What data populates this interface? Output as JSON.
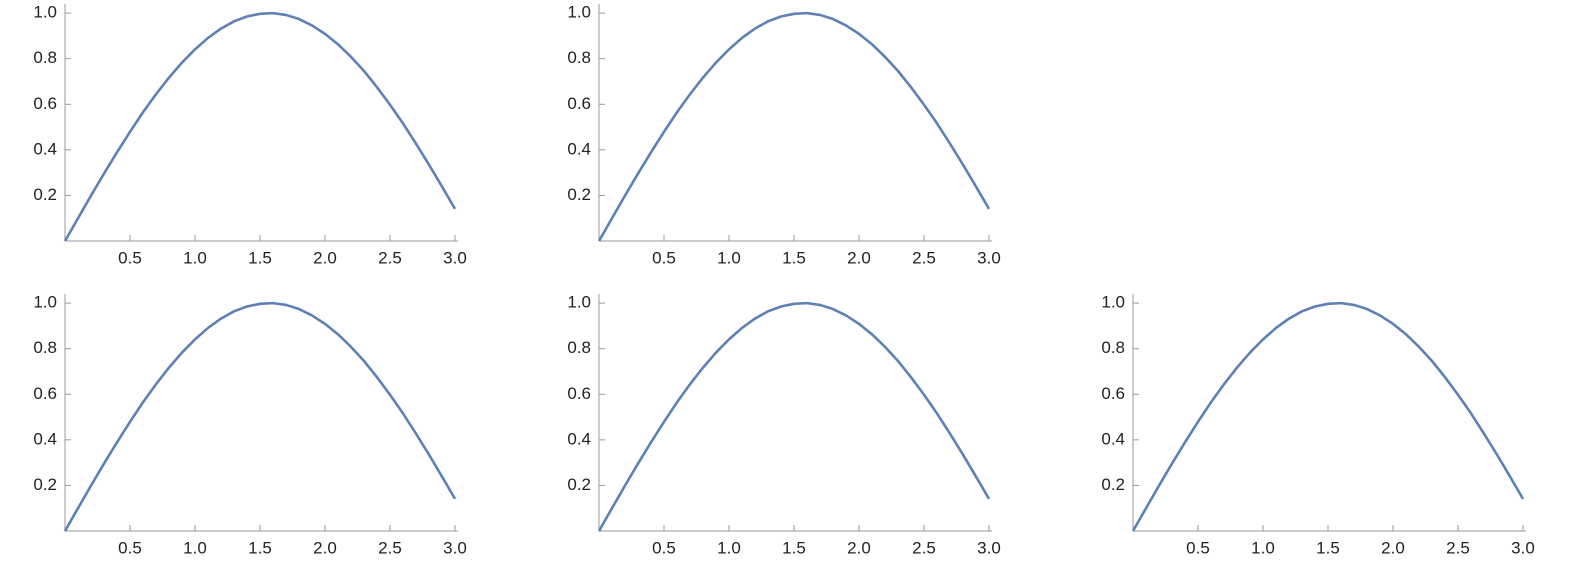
{
  "chart_data": [
    {
      "type": "line",
      "color": "#5e81b5",
      "x": [
        0,
        0.1,
        0.2,
        0.3,
        0.4,
        0.5,
        0.6,
        0.7,
        0.8,
        0.9,
        1.0,
        1.1,
        1.2,
        1.3,
        1.4,
        1.5,
        1.6,
        1.7,
        1.8,
        1.9,
        2.0,
        2.1,
        2.2,
        2.3,
        2.4,
        2.5,
        2.6,
        2.7,
        2.8,
        2.9,
        3.0
      ],
      "values": [
        0,
        0.1,
        0.199,
        0.296,
        0.389,
        0.479,
        0.565,
        0.644,
        0.717,
        0.783,
        0.841,
        0.891,
        0.932,
        0.964,
        0.985,
        0.997,
        1.0,
        0.992,
        0.974,
        0.946,
        0.909,
        0.863,
        0.808,
        0.746,
        0.675,
        0.598,
        0.516,
        0.427,
        0.335,
        0.239,
        0.141
      ],
      "xlim": [
        0,
        3
      ],
      "ylim": [
        0,
        1.04
      ],
      "xticks": [
        0.5,
        {
          "value": 1,
          "label": "1.0"
        },
        1.5,
        {
          "value": 2,
          "label": "2.0"
        },
        2.5,
        {
          "value": 3,
          "label": "3.0"
        }
      ],
      "yticks": [
        0.2,
        0.4,
        0.6,
        0.8,
        {
          "value": 1,
          "label": "1.0"
        }
      ]
    },
    {
      "type": "line",
      "color": "#5e81b5",
      "x": [
        0,
        0.1,
        0.2,
        0.3,
        0.4,
        0.5,
        0.6,
        0.7,
        0.8,
        0.9,
        1.0,
        1.1,
        1.2,
        1.3,
        1.4,
        1.5,
        1.6,
        1.7,
        1.8,
        1.9,
        2.0,
        2.1,
        2.2,
        2.3,
        2.4,
        2.5,
        2.6,
        2.7,
        2.8,
        2.9,
        3.0
      ],
      "values": [
        0,
        0.1,
        0.199,
        0.296,
        0.389,
        0.479,
        0.565,
        0.644,
        0.717,
        0.783,
        0.841,
        0.891,
        0.932,
        0.964,
        0.985,
        0.997,
        1.0,
        0.992,
        0.974,
        0.946,
        0.909,
        0.863,
        0.808,
        0.746,
        0.675,
        0.598,
        0.516,
        0.427,
        0.335,
        0.239,
        0.141
      ],
      "xlim": [
        0,
        3
      ],
      "ylim": [
        0,
        1.04
      ],
      "xticks": [
        0.5,
        {
          "value": 1,
          "label": "1.0"
        },
        1.5,
        {
          "value": 2,
          "label": "2.0"
        },
        2.5,
        {
          "value": 3,
          "label": "3.0"
        }
      ],
      "yticks": [
        0.2,
        0.4,
        0.6,
        0.8,
        {
          "value": 1,
          "label": "1.0"
        }
      ]
    },
    {
      "type": "line",
      "color": "#5e81b5",
      "x": [
        0,
        0.1,
        0.2,
        0.3,
        0.4,
        0.5,
        0.6,
        0.7,
        0.8,
        0.9,
        1.0,
        1.1,
        1.2,
        1.3,
        1.4,
        1.5,
        1.6,
        1.7,
        1.8,
        1.9,
        2.0,
        2.1,
        2.2,
        2.3,
        2.4,
        2.5,
        2.6,
        2.7,
        2.8,
        2.9,
        3.0
      ],
      "values": [
        0,
        0.1,
        0.199,
        0.296,
        0.389,
        0.479,
        0.565,
        0.644,
        0.717,
        0.783,
        0.841,
        0.891,
        0.932,
        0.964,
        0.985,
        0.997,
        1.0,
        0.992,
        0.974,
        0.946,
        0.909,
        0.863,
        0.808,
        0.746,
        0.675,
        0.598,
        0.516,
        0.427,
        0.335,
        0.239,
        0.141
      ],
      "xlim": [
        0,
        3
      ],
      "ylim": [
        0,
        1.04
      ],
      "xticks": [
        0.5,
        {
          "value": 1,
          "label": "1.0"
        },
        1.5,
        {
          "value": 2,
          "label": "2.0"
        },
        2.5,
        {
          "value": 3,
          "label": "3.0"
        }
      ],
      "yticks": [
        0.2,
        0.4,
        0.6,
        0.8,
        {
          "value": 1,
          "label": "1.0"
        }
      ]
    },
    {
      "type": "line",
      "color": "#5e81b5",
      "x": [
        0,
        0.1,
        0.2,
        0.3,
        0.4,
        0.5,
        0.6,
        0.7,
        0.8,
        0.9,
        1.0,
        1.1,
        1.2,
        1.3,
        1.4,
        1.5,
        1.6,
        1.7,
        1.8,
        1.9,
        2.0,
        2.1,
        2.2,
        2.3,
        2.4,
        2.5,
        2.6,
        2.7,
        2.8,
        2.9,
        3.0
      ],
      "values": [
        0,
        0.1,
        0.199,
        0.296,
        0.389,
        0.479,
        0.565,
        0.644,
        0.717,
        0.783,
        0.841,
        0.891,
        0.932,
        0.964,
        0.985,
        0.997,
        1.0,
        0.992,
        0.974,
        0.946,
        0.909,
        0.863,
        0.808,
        0.746,
        0.675,
        0.598,
        0.516,
        0.427,
        0.335,
        0.239,
        0.141
      ],
      "xlim": [
        0,
        3
      ],
      "ylim": [
        0,
        1.04
      ],
      "xticks": [
        0.5,
        {
          "value": 1,
          "label": "1.0"
        },
        1.5,
        {
          "value": 2,
          "label": "2.0"
        },
        2.5,
        {
          "value": 3,
          "label": "3.0"
        }
      ],
      "yticks": [
        0.2,
        0.4,
        0.6,
        0.8,
        {
          "value": 1,
          "label": "1.0"
        }
      ]
    },
    {
      "type": "line",
      "color": "#5e81b5",
      "x": [
        0,
        0.1,
        0.2,
        0.3,
        0.4,
        0.5,
        0.6,
        0.7,
        0.8,
        0.9,
        1.0,
        1.1,
        1.2,
        1.3,
        1.4,
        1.5,
        1.6,
        1.7,
        1.8,
        1.9,
        2.0,
        2.1,
        2.2,
        2.3,
        2.4,
        2.5,
        2.6,
        2.7,
        2.8,
        2.9,
        3.0
      ],
      "values": [
        0,
        0.1,
        0.199,
        0.296,
        0.389,
        0.479,
        0.565,
        0.644,
        0.717,
        0.783,
        0.841,
        0.891,
        0.932,
        0.964,
        0.985,
        0.997,
        1.0,
        0.992,
        0.974,
        0.946,
        0.909,
        0.863,
        0.808,
        0.746,
        0.675,
        0.598,
        0.516,
        0.427,
        0.335,
        0.239,
        0.141
      ],
      "xlim": [
        0,
        3
      ],
      "ylim": [
        0,
        1.04
      ],
      "xticks": [
        0.5,
        {
          "value": 1,
          "label": "1.0"
        },
        1.5,
        {
          "value": 2,
          "label": "2.0"
        },
        2.5,
        {
          "value": 3,
          "label": "3.0"
        }
      ],
      "yticks": [
        0.2,
        0.4,
        0.6,
        0.8,
        {
          "value": 1,
          "label": "1.0"
        }
      ]
    }
  ]
}
